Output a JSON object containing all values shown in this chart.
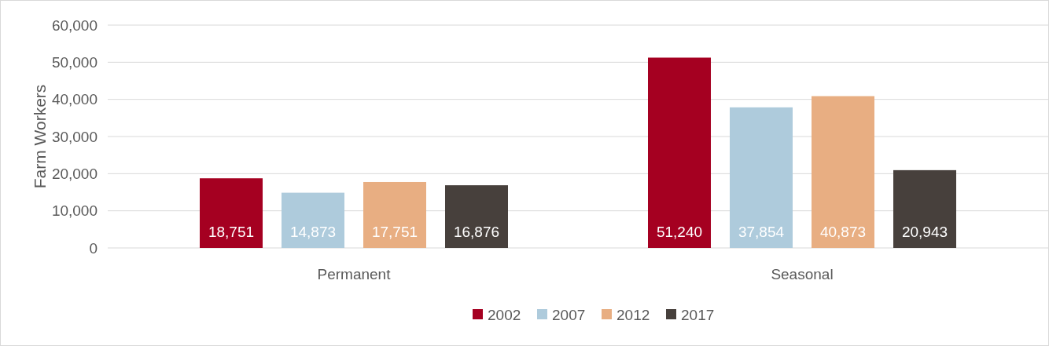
{
  "chart_data": {
    "type": "bar",
    "ylabel": "Farm Workers",
    "categories": [
      "Permanent",
      "Seasonal"
    ],
    "series": [
      {
        "name": "2002",
        "color": "#a50021",
        "values": [
          18751,
          51240
        ],
        "value_labels": [
          "18,751",
          "51,240"
        ]
      },
      {
        "name": "2007",
        "color": "#aecbdc",
        "values": [
          14873,
          37854
        ],
        "value_labels": [
          "14,873",
          "37,854"
        ]
      },
      {
        "name": "2012",
        "color": "#e8ae82",
        "values": [
          17751,
          40873
        ],
        "value_labels": [
          "17,751",
          "40,873"
        ]
      },
      {
        "name": "2017",
        "color": "#47403c",
        "values": [
          16876,
          20943
        ],
        "value_labels": [
          "16,876",
          "20,943"
        ]
      }
    ],
    "ylim": [
      0,
      60000
    ],
    "yticks": [
      {
        "value": 0,
        "label": "0"
      },
      {
        "value": 10000,
        "label": "10,000"
      },
      {
        "value": 20000,
        "label": "20,000"
      },
      {
        "value": 30000,
        "label": "30,000"
      },
      {
        "value": 40000,
        "label": "40,000"
      },
      {
        "value": 50000,
        "label": "50,000"
      },
      {
        "value": 60000,
        "label": "60,000"
      }
    ],
    "grid": "y",
    "legend": "bottom"
  }
}
